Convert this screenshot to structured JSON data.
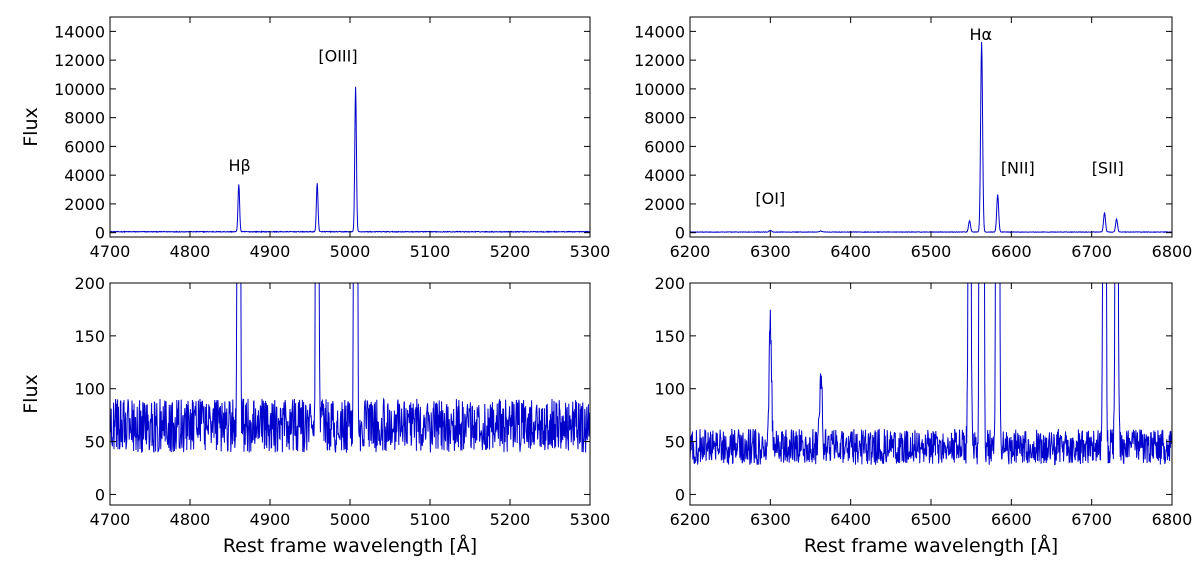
{
  "figure": {
    "trace_color": "#0000cc"
  },
  "chart_data": [
    {
      "id": "top-left",
      "type": "line",
      "title": "",
      "xlabel": "",
      "ylabel": "Flux",
      "xlim": [
        4700,
        5300
      ],
      "ylim": [
        -300,
        15000
      ],
      "xticks": [
        4700,
        4800,
        4900,
        5000,
        5100,
        5200,
        5300
      ],
      "yticks": [
        0,
        2000,
        4000,
        6000,
        8000,
        10000,
        12000,
        14000
      ],
      "series": [
        {
          "kind": "spectrum",
          "continuum": 65,
          "noise": 15,
          "lines": [
            {
              "center": 4861,
              "peak": 3300,
              "width": 1.0
            },
            {
              "center": 4959,
              "peak": 3400,
              "width": 1.0
            },
            {
              "center": 5007,
              "peak": 10100,
              "width": 1.0
            }
          ]
        }
      ],
      "annotations": [
        {
          "text": "Hβ",
          "x": 4862,
          "y": 4300
        },
        {
          "text": "[OIII]",
          "x": 4985,
          "y": 11900
        }
      ]
    },
    {
      "id": "top-right",
      "type": "line",
      "title": "",
      "xlabel": "",
      "ylabel": "",
      "xlim": [
        6200,
        6800
      ],
      "ylim": [
        -300,
        15000
      ],
      "xticks": [
        6200,
        6300,
        6400,
        6500,
        6600,
        6700,
        6800
      ],
      "yticks": [
        0,
        2000,
        4000,
        6000,
        8000,
        10000,
        12000,
        14000
      ],
      "series": [
        {
          "kind": "spectrum",
          "continuum": 45,
          "noise": 10,
          "lines": [
            {
              "center": 6300,
              "peak": 120,
              "width": 1.5
            },
            {
              "center": 6363,
              "peak": 70,
              "width": 1.5
            },
            {
              "center": 6548,
              "peak": 800,
              "width": 1.2
            },
            {
              "center": 6563,
              "peak": 13200,
              "width": 1.2
            },
            {
              "center": 6583,
              "peak": 2600,
              "width": 1.2
            },
            {
              "center": 6716,
              "peak": 1350,
              "width": 1.2
            },
            {
              "center": 6731,
              "peak": 900,
              "width": 1.2
            }
          ]
        }
      ],
      "annotations": [
        {
          "text": "Hα",
          "x": 6562,
          "y": 13400
        },
        {
          "text": "[NII]",
          "x": 6608,
          "y": 4100
        },
        {
          "text": "[OI]",
          "x": 6300,
          "y": 2000
        },
        {
          "text": "[SII]",
          "x": 6720,
          "y": 4100
        }
      ]
    },
    {
      "id": "bottom-left",
      "type": "line",
      "title": "",
      "xlabel": "Rest frame wavelength [Å]",
      "ylabel": "Flux",
      "xlim": [
        4700,
        5300
      ],
      "ylim": [
        -10,
        200
      ],
      "xticks": [
        4700,
        4800,
        4900,
        5000,
        5100,
        5200,
        5300
      ],
      "yticks": [
        0,
        50,
        100,
        150,
        200
      ],
      "series": [
        {
          "kind": "spectrum",
          "continuum": 65,
          "noise": 15,
          "lines": [
            {
              "center": 4861,
              "peak": 3300,
              "width": 1.0
            },
            {
              "center": 4959,
              "peak": 3400,
              "width": 1.0
            },
            {
              "center": 5007,
              "peak": 10100,
              "width": 1.0
            }
          ]
        }
      ],
      "annotations": []
    },
    {
      "id": "bottom-right",
      "type": "line",
      "title": "",
      "xlabel": "Rest frame wavelength [Å]",
      "ylabel": "",
      "xlim": [
        6200,
        6800
      ],
      "ylim": [
        -10,
        200
      ],
      "xticks": [
        6200,
        6300,
        6400,
        6500,
        6600,
        6700,
        6800
      ],
      "yticks": [
        0,
        50,
        100,
        150,
        200
      ],
      "series": [
        {
          "kind": "spectrum",
          "continuum": 45,
          "noise": 10,
          "lines": [
            {
              "center": 6300,
              "peak": 120,
              "width": 1.5
            },
            {
              "center": 6363,
              "peak": 70,
              "width": 1.5
            },
            {
              "center": 6548,
              "peak": 800,
              "width": 1.2
            },
            {
              "center": 6563,
              "peak": 13200,
              "width": 1.2
            },
            {
              "center": 6583,
              "peak": 2600,
              "width": 1.2
            },
            {
              "center": 6716,
              "peak": 1350,
              "width": 1.2
            },
            {
              "center": 6731,
              "peak": 900,
              "width": 1.2
            }
          ]
        }
      ],
      "annotations": []
    }
  ]
}
